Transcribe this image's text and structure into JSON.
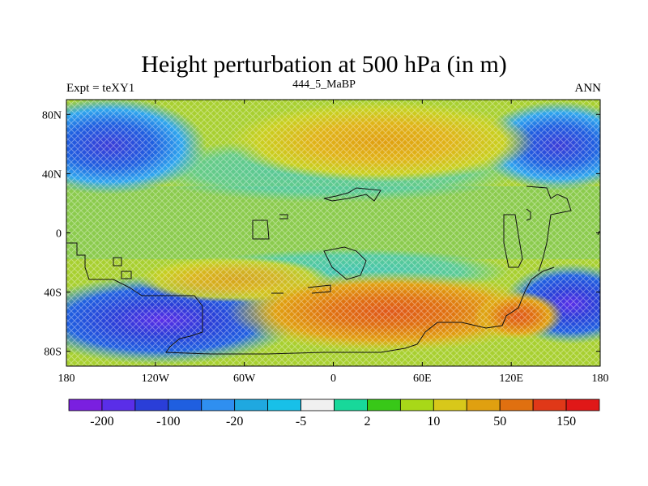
{
  "title": "Height perturbation at 500 hPa (in m)",
  "left_label": "Expt = teXY1",
  "center_label": "444_5_MaBP",
  "right_label": "ANN",
  "map": {
    "lon_range": [
      -180,
      180
    ],
    "lat_range": [
      -90,
      90
    ],
    "x_ticks": [
      {
        "value": -180,
        "label": "180"
      },
      {
        "value": -120,
        "label": "120W"
      },
      {
        "value": -60,
        "label": "60W"
      },
      {
        "value": 0,
        "label": "0"
      },
      {
        "value": 60,
        "label": "60E"
      },
      {
        "value": 120,
        "label": "120E"
      },
      {
        "value": 180,
        "label": "180"
      }
    ],
    "y_ticks": [
      {
        "value": 80,
        "label": "80N"
      },
      {
        "value": 40,
        "label": "40N"
      },
      {
        "value": 0,
        "label": "0"
      },
      {
        "value": -40,
        "label": "40S"
      },
      {
        "value": -80,
        "label": "80S"
      }
    ]
  },
  "colorbar": {
    "colors": [
      "#7a1fe0",
      "#5a2ee8",
      "#2a3ed8",
      "#1f5fe0",
      "#2f8ff0",
      "#1fa8e0",
      "#18c0e8",
      "#f0f0f0",
      "#18d89a",
      "#38c818",
      "#a8d818",
      "#d8c81a",
      "#e0a010",
      "#e07010",
      "#e03818",
      "#e01818"
    ],
    "labels": [
      "-200",
      "-100",
      "-20",
      "-5",
      "2",
      "10",
      "50",
      "150"
    ]
  },
  "chart_data": {
    "type": "heatmap",
    "title": "Height perturbation at 500 hPa (in m)",
    "variable": "500 hPa height perturbation",
    "units": "m",
    "contour_levels": [
      -200,
      -150,
      -100,
      -50,
      -20,
      -10,
      -5,
      -2,
      2,
      5,
      10,
      20,
      50,
      100,
      150,
      200
    ],
    "features": [
      {
        "region": "Southern ocean south of S. America / South Atlantic (~40-65S, 180-50W)",
        "approx_value": -100
      },
      {
        "region": "North Pacific high latitudes (~45-80N, 180-120W)",
        "approx_value": -50
      },
      {
        "region": "North Pacific high latitudes (~45-80N, 130E-180)",
        "approx_value": -50
      },
      {
        "region": "South Pacific (~40-60S, 140E-180)",
        "approx_value": -100
      },
      {
        "region": "Eurasia / North Africa (~40-75N, 20W-100E)",
        "approx_value": 50
      },
      {
        "region": "South Indian Ocean / Southern Africa (~40-65S, 20W-140E)",
        "approx_value": 100
      },
      {
        "region": "Tropics (~20S-20N)",
        "approx_value": 5
      }
    ]
  }
}
